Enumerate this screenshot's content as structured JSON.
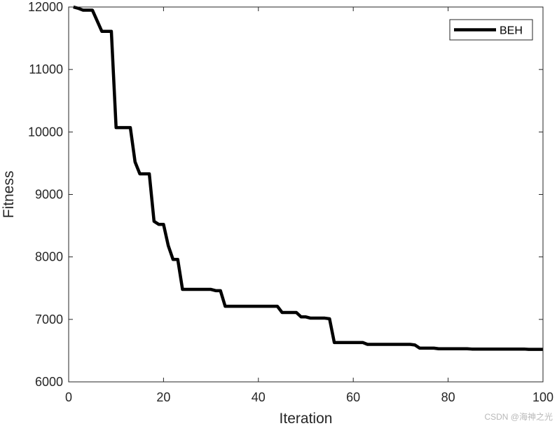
{
  "chart_data": {
    "type": "line",
    "title": "",
    "xlabel": "Iteration",
    "ylabel": "Fitness",
    "xlim": [
      0,
      100
    ],
    "ylim": [
      6000,
      12000
    ],
    "xticks": [
      0,
      20,
      40,
      60,
      80,
      100
    ],
    "yticks": [
      6000,
      7000,
      8000,
      9000,
      10000,
      11000,
      12000
    ],
    "xtick_labels": [
      "0",
      "20",
      "40",
      "60",
      "80",
      "100"
    ],
    "ytick_labels": [
      "6000",
      "7000",
      "8000",
      "9000",
      "10000",
      "11000",
      "12000"
    ],
    "grid": false,
    "legend_position": "top-right",
    "series": [
      {
        "name": "BEH",
        "color": "#000000",
        "x": [
          1,
          2,
          3,
          5,
          7,
          9,
          10,
          12,
          13,
          14,
          15,
          17,
          18,
          19,
          20,
          21,
          22,
          23,
          24,
          25,
          26,
          27,
          28,
          29,
          30,
          31,
          32,
          33,
          34,
          35,
          36,
          37,
          38,
          39,
          40,
          41,
          42,
          43,
          44,
          45,
          46,
          47,
          48,
          49,
          50,
          51,
          52,
          53,
          54,
          55,
          56,
          57,
          58,
          59,
          60,
          61,
          62,
          63,
          64,
          65,
          66,
          67,
          68,
          69,
          70,
          71,
          72,
          73,
          74,
          75,
          76,
          77,
          78,
          79,
          80,
          81,
          82,
          83,
          84,
          85,
          86,
          87,
          88,
          89,
          90,
          91,
          92,
          93,
          94,
          95,
          96,
          97,
          98,
          99,
          100
        ],
        "y": [
          12000,
          11980,
          11950,
          11950,
          11610,
          11610,
          10070,
          10070,
          10070,
          9520,
          9330,
          9330,
          8570,
          8520,
          8520,
          8180,
          7960,
          7960,
          7480,
          7480,
          7480,
          7480,
          7480,
          7480,
          7480,
          7460,
          7460,
          7210,
          7210,
          7210,
          7210,
          7210,
          7210,
          7210,
          7210,
          7210,
          7210,
          7210,
          7210,
          7110,
          7110,
          7110,
          7110,
          7040,
          7040,
          7020,
          7020,
          7020,
          7020,
          7010,
          6630,
          6630,
          6630,
          6630,
          6630,
          6630,
          6630,
          6600,
          6600,
          6600,
          6600,
          6600,
          6600,
          6600,
          6600,
          6600,
          6600,
          6590,
          6540,
          6540,
          6540,
          6540,
          6530,
          6530,
          6530,
          6530,
          6530,
          6530,
          6530,
          6525,
          6525,
          6525,
          6525,
          6525,
          6525,
          6525,
          6525,
          6525,
          6525,
          6525,
          6525,
          6520,
          6520,
          6520,
          6520
        ]
      }
    ]
  },
  "watermark": "CSDN @海神之光"
}
